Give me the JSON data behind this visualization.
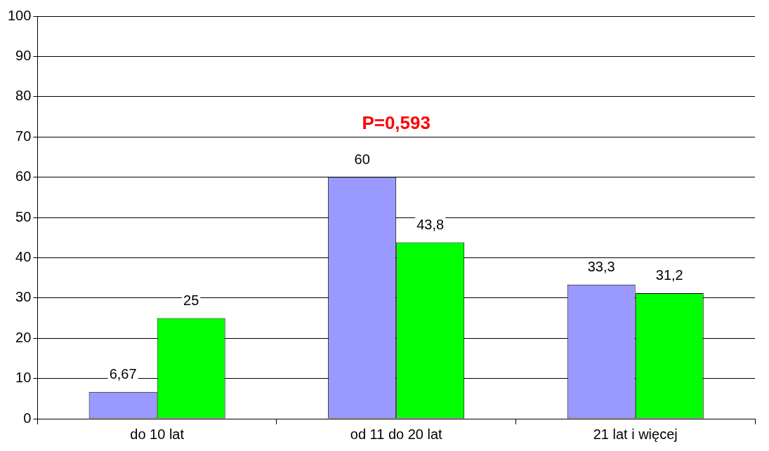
{
  "chart_data": {
    "type": "bar",
    "categories": [
      "do 10 lat",
      "od 11 do 20 lat",
      "21 lat i więcej"
    ],
    "series": [
      {
        "color": "#9999ff",
        "values": [
          6.67,
          60,
          33.3
        ],
        "value_labels": [
          "6,67",
          "60",
          "33,3"
        ]
      },
      {
        "color": "#00ff00",
        "values": [
          25,
          43.8,
          31.2
        ],
        "value_labels": [
          "25",
          "43,8",
          "31,2"
        ]
      }
    ],
    "annotations": [
      "P=0,593"
    ],
    "ylim": [
      0,
      100
    ],
    "yticks": [
      0,
      10,
      20,
      30,
      40,
      50,
      60,
      70,
      80,
      90,
      100
    ],
    "grid": "y",
    "legend": false
  }
}
